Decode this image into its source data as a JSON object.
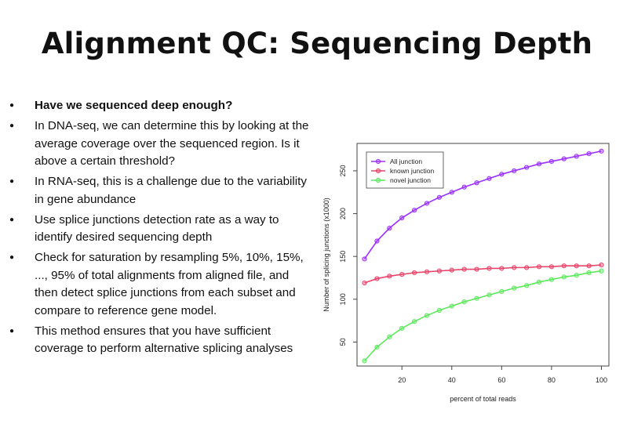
{
  "slide": {
    "title": "Alignment QC: Sequencing Depth",
    "bullets": [
      {
        "text": "Have we sequenced deep enough?",
        "bold": true
      },
      {
        "text": "In DNA-seq, we can determine this by looking at the average coverage over the sequenced region. Is it above a certain threshold?",
        "bold": false
      },
      {
        "text": "In RNA-seq, this is a challenge due to the variability in gene abundance",
        "bold": false
      },
      {
        "text": "Use splice junctions detection rate as a way to identify desired sequencing depth",
        "bold": false
      },
      {
        "text": "Check for saturation by resampling 5%, 10%, 15%, ..., 95% of total alignments from aligned file, and then detect splice junctions from each subset and compare to reference gene model.",
        "bold": false
      },
      {
        "text": "This method ensures that you have sufficient coverage to perform alternative splicing analyses",
        "bold": false
      }
    ]
  },
  "chart_data": {
    "type": "line",
    "xlabel": "percent of total reads",
    "ylabel": "Number of splicing junctions (x1000)",
    "xlim": [
      2,
      103
    ],
    "ylim": [
      22,
      282
    ],
    "xticks": [
      20,
      40,
      60,
      80,
      100
    ],
    "yticks": [
      50,
      100,
      150,
      200,
      250
    ],
    "grid": false,
    "legend_position": "top-left",
    "x": [
      5,
      10,
      15,
      20,
      25,
      30,
      35,
      40,
      45,
      50,
      55,
      60,
      65,
      70,
      75,
      80,
      85,
      90,
      95,
      100
    ],
    "series": [
      {
        "name": "All junction",
        "color": "#9b30ff",
        "values": [
          147,
          168,
          183,
          195,
          204,
          212,
          219,
          225,
          231,
          236,
          241,
          246,
          250,
          254,
          258,
          261,
          264,
          267,
          270,
          273
        ]
      },
      {
        "name": "known junction",
        "color": "#e8456b",
        "values": [
          119,
          124,
          127,
          129,
          131,
          132,
          133,
          134,
          135,
          135,
          136,
          136,
          137,
          137,
          138,
          138,
          139,
          139,
          139,
          140
        ]
      },
      {
        "name": "novel junction",
        "color": "#5ee85e",
        "values": [
          28,
          44,
          56,
          66,
          74,
          81,
          87,
          92,
          97,
          101,
          105,
          109,
          113,
          116,
          120,
          123,
          126,
          128,
          131,
          133
        ]
      }
    ]
  }
}
